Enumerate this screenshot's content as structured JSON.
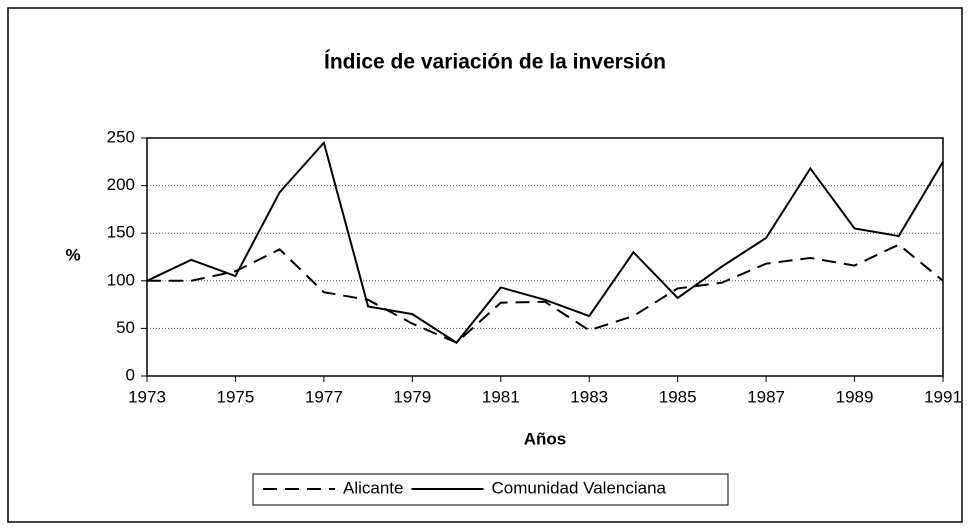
{
  "chart_data": {
    "type": "line",
    "title": "Índice de variación de la inversión",
    "x_label": "Años",
    "y_label": "%",
    "x": [
      1973,
      1974,
      1975,
      1976,
      1977,
      1978,
      1979,
      1980,
      1981,
      1982,
      1983,
      1984,
      1985,
      1986,
      1987,
      1988,
      1989,
      1990,
      1991
    ],
    "series": [
      {
        "name": "Alicante",
        "color": "#000000",
        "line_style": "dashed",
        "values": [
          100,
          100,
          110,
          133,
          88,
          80,
          55,
          35,
          77,
          78,
          48,
          63,
          92,
          98,
          118,
          124,
          116,
          138,
          100
        ]
      },
      {
        "name": "Comunidad Valenciana",
        "color": "#000000",
        "line_style": "solid",
        "values": [
          100,
          122,
          105,
          193,
          245,
          73,
          65,
          35,
          93,
          80,
          63,
          130,
          82,
          115,
          145,
          218,
          155,
          147,
          225
        ]
      }
    ],
    "xlim": [
      1973,
      1991
    ],
    "xticks": [
      1973,
      1975,
      1977,
      1979,
      1981,
      1983,
      1985,
      1987,
      1989,
      1991
    ],
    "ylim": [
      0,
      250
    ],
    "yticks": [
      0,
      50,
      100,
      150,
      200,
      250
    ],
    "grid": true,
    "legend": "bottom"
  }
}
